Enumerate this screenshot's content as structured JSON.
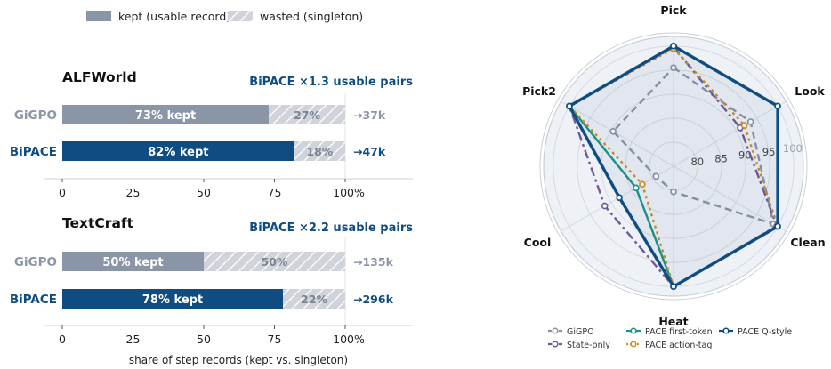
{
  "legend_top": {
    "kept": "kept (usable record)",
    "wasted": "wasted (singleton)",
    "kept_color": "#8a96a8",
    "wasted_color": "#d0d4da"
  },
  "bar_panels": [
    {
      "title": "ALFWorld",
      "note": "BiPACE ×1.3 usable pairs",
      "rows": [
        {
          "method": "GiGPO",
          "kept": 73,
          "wasted": 27,
          "kept_label": "73% kept",
          "wasted_label": "27%",
          "pairs_label": "→37k",
          "color": "#8a96a8"
        },
        {
          "method": "BiPACE",
          "kept": 82,
          "wasted": 18,
          "kept_label": "82% kept",
          "wasted_label": "18%",
          "pairs_label": "→47k",
          "color": "#0f4c81"
        }
      ],
      "ticks": [
        "0",
        "25",
        "50",
        "75",
        "100%"
      ]
    },
    {
      "title": "TextCraft",
      "note": "BiPACE ×2.2 usable pairs",
      "rows": [
        {
          "method": "GiGPO",
          "kept": 50,
          "wasted": 50,
          "kept_label": "50% kept",
          "wasted_label": "50%",
          "pairs_label": "→135k",
          "color": "#8a96a8"
        },
        {
          "method": "BiPACE",
          "kept": 78,
          "wasted": 22,
          "kept_label": "78% kept",
          "wasted_label": "22%",
          "pairs_label": "→296k",
          "color": "#0f4c81"
        }
      ],
      "ticks": [
        "0",
        "25",
        "50",
        "75",
        "100%"
      ]
    }
  ],
  "bar_xlabel": "share of step records (kept vs. singleton)",
  "chart_data": [
    {
      "type": "bar",
      "title": "ALFWorld",
      "categories": [
        "GiGPO",
        "BiPACE"
      ],
      "series": [
        {
          "name": "kept (usable record)",
          "values": [
            73,
            82
          ]
        },
        {
          "name": "wasted (singleton)",
          "values": [
            27,
            18
          ]
        }
      ],
      "xlim": [
        0,
        100
      ]
    },
    {
      "type": "bar",
      "title": "TextCraft",
      "categories": [
        "GiGPO",
        "BiPACE"
      ],
      "series": [
        {
          "name": "kept (usable record)",
          "values": [
            50,
            78
          ]
        },
        {
          "name": "wasted (singleton)",
          "values": [
            50,
            22
          ]
        }
      ],
      "xlim": [
        0,
        100
      ]
    },
    {
      "type": "radar",
      "axes": [
        "Pick",
        "Look",
        "Clean",
        "Heat",
        "Cool",
        "Pick2"
      ],
      "rlim": [
        75,
        102
      ],
      "rticks": [
        "80",
        "85",
        "90",
        "95",
        "100"
      ],
      "series": [
        {
          "name": "GiGPO",
          "values": [
            95.5,
            93.5,
            99,
            80.3,
            79.2,
            89.5
          ],
          "color": "#8a93a3",
          "dash": "8,5"
        },
        {
          "name": "State-only",
          "values": [
            99.8,
            91,
            99.8,
            100,
            91.5,
            100
          ],
          "color": "#6e5a9a",
          "dash": "10,4,3,4"
        },
        {
          "name": "PACE first-token",
          "values": [
            100,
            100,
            100,
            100,
            84,
            100
          ],
          "color": "#1a9485",
          "dash": ""
        },
        {
          "name": "PACE action-tag",
          "values": [
            99.5,
            92,
            100,
            100,
            82.5,
            100
          ],
          "color": "#d08f1f",
          "dash": "3,4"
        },
        {
          "name": "PACE Q-style",
          "values": [
            100,
            100,
            100,
            100,
            88,
            100
          ],
          "color": "#0f4c81",
          "dash": ""
        }
      ]
    }
  ]
}
